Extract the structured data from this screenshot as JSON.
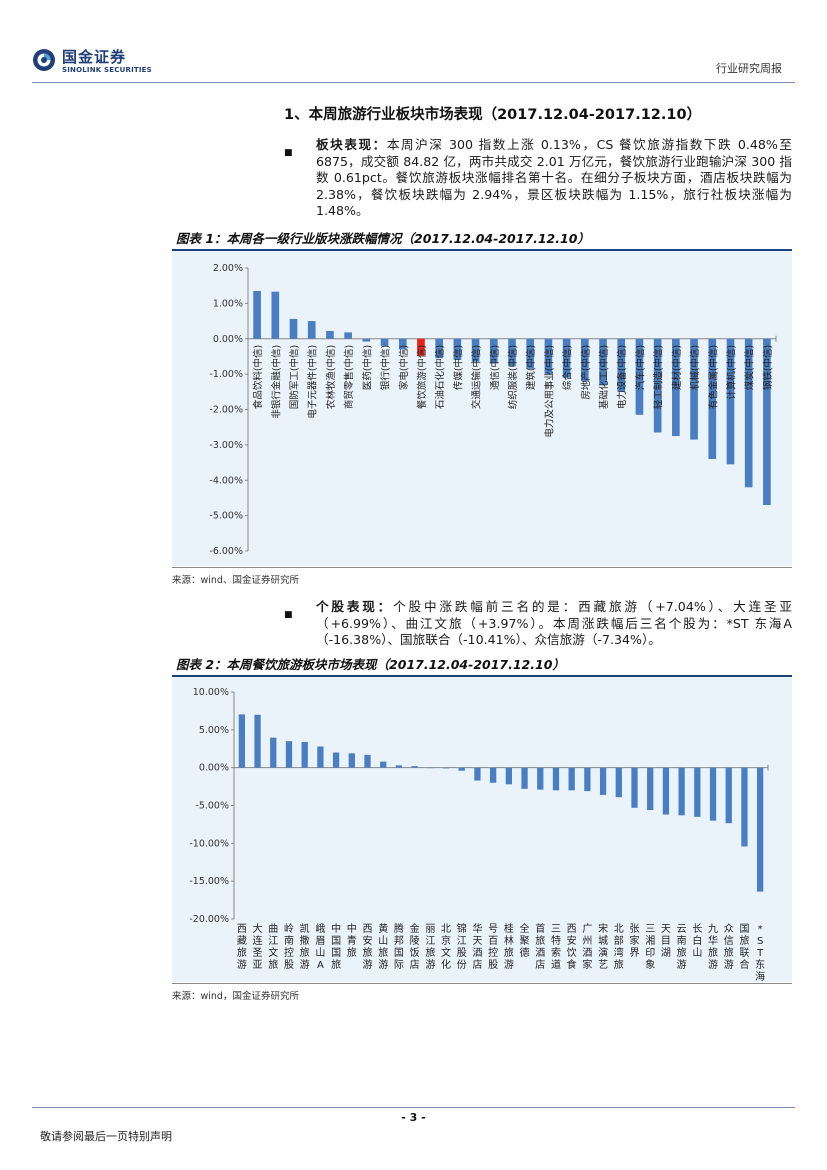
{
  "header": {
    "logo_cn": "国金证券",
    "logo_en": "SINOLINK SECURITIES",
    "report_type": "行业研究周报"
  },
  "section": {
    "title": "1、本周旅游行业板块市场表现（2017.12.04-2017.12.10）"
  },
  "para1": {
    "label": "板块表现：",
    "text": "本周沪深 300 指数上涨 0.13%，CS 餐饮旅游指数下跌 0.48%至 6875，成交额 84.82 亿，两市共成交 2.01 万亿元，餐饮旅游行业跑输沪深 300 指数 0.61pct。餐饮旅游板块涨幅排名第十名。在细分子板块方面，酒店板块跌幅为 2.38%，餐饮板块跌幅为 2.94%，景区板块跌幅为 1.15%，旅行社板块涨幅为 1.48%。"
  },
  "figure1": {
    "title": "图表 1：本周各一级行业版块涨跌幅情况（2017.12.04-2017.12.10）",
    "source": "来源：wind、国金证券研究所"
  },
  "para2": {
    "label": "个股表现：",
    "text": "个股中涨跌幅前三名的是：西藏旅游（+7.04%）、大连圣亚（+6.99%）、曲江文旅（+3.97%）。本周涨跌幅后三名个股为：*ST 东海A（-16.38%）、国旅联合（-10.41%）、众信旅游（-7.34%）。"
  },
  "figure2": {
    "title": "图表 2：本周餐饮旅游板块市场表现（2017.12.04-2017.12.10）",
    "source": "来源：wind，国金证券研究所"
  },
  "footer": {
    "page": "- 3 -",
    "disclaimer": "敬请参阅最后一页特别声明"
  },
  "colors": {
    "bar": "#4a7ec2",
    "highlight": "#e8231a",
    "brand": "#1f3f7a"
  },
  "chart_data": [
    {
      "type": "bar",
      "title": "本周各一级行业版块涨跌幅情况",
      "ylim": [
        -6,
        2
      ],
      "yticks": [
        "2.00%",
        "1.00%",
        "0.00%",
        "-1.00%",
        "-2.00%",
        "-3.00%",
        "-4.00%",
        "-5.00%",
        "-6.00%"
      ],
      "highlight_index": 9,
      "categories": [
        "食品饮料(中信)",
        "非银行金融(中信)",
        "国防军工(中信)",
        "电子元器件(中信)",
        "农林牧渔(中信)",
        "商贸零售(中信)",
        "医药(中信)",
        "银行(中信)",
        "家电(中信)",
        "餐饮旅游(中信)",
        "石油石化(中信)",
        "传媒(中信)",
        "交通运输(中信)",
        "通信(中信)",
        "纺织服装(中信)",
        "建筑(中信)",
        "电力及公用事业(中信)",
        "综合(中信)",
        "房地产(中信)",
        "基础化工(中信)",
        "电力设备(中信)",
        "汽车(中信)",
        "轻工制造(中信)",
        "建材(中信)",
        "机械(中信)",
        "有色金属(中信)",
        "计算机(中信)",
        "煤炭(中信)",
        "钢铁(中信)"
      ],
      "values": [
        1.35,
        1.33,
        0.56,
        0.5,
        0.22,
        0.18,
        -0.08,
        -0.2,
        -0.3,
        -0.48,
        -0.55,
        -0.6,
        -0.65,
        -0.7,
        -0.78,
        -0.85,
        -1.0,
        -1.1,
        -1.2,
        -1.3,
        -1.5,
        -2.15,
        -2.65,
        -2.75,
        -2.85,
        -3.4,
        -3.55,
        -4.2,
        -4.7
      ]
    },
    {
      "type": "bar",
      "title": "本周餐饮旅游板块市场表现",
      "ylim": [
        -20,
        10
      ],
      "yticks": [
        "10.00%",
        "5.00%",
        "0.00%",
        "-5.00%",
        "-10.00%",
        "-15.00%",
        "-20.00%"
      ],
      "categories": [
        "西藏旅游",
        "大连圣亚",
        "曲江文旅",
        "岭南控股",
        "凯撒旅游",
        "峨眉山A",
        "中国国旅",
        "中青旅",
        "西安旅游",
        "黄山旅游",
        "腾邦国际",
        "金陵饭店",
        "丽江旅游",
        "北京文化",
        "锦江股份",
        "华天酒店",
        "号百控股",
        "桂林旅游",
        "全聚德",
        "首旅酒店",
        "三特索道",
        "西安饮食",
        "广州酒家",
        "宋城演艺",
        "北部湾旅",
        "张家界",
        "三湘印象",
        "天目湖",
        "云南旅游",
        "长白山",
        "九华旅游",
        "众信旅游",
        "国旅联合",
        "*ST东海A"
      ],
      "values": [
        7.04,
        6.99,
        3.97,
        3.5,
        3.4,
        2.8,
        2.0,
        1.9,
        1.7,
        0.8,
        0.3,
        0.2,
        0.0,
        -0.1,
        -0.4,
        -1.7,
        -2.0,
        -2.2,
        -2.8,
        -2.9,
        -3.0,
        -3.0,
        -3.1,
        -3.6,
        -3.9,
        -5.3,
        -5.6,
        -6.2,
        -6.3,
        -6.5,
        -7.0,
        -7.34,
        -10.41,
        -16.38
      ]
    }
  ]
}
